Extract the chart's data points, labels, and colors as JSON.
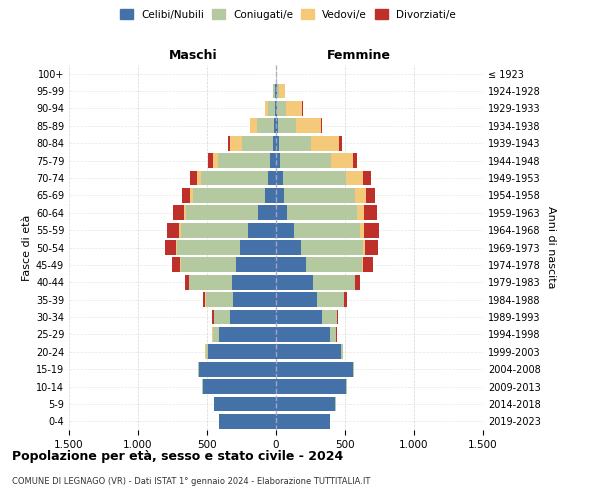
{
  "age_groups": [
    "0-4",
    "5-9",
    "10-14",
    "15-19",
    "20-24",
    "25-29",
    "30-34",
    "35-39",
    "40-44",
    "45-49",
    "50-54",
    "55-59",
    "60-64",
    "65-69",
    "70-74",
    "75-79",
    "80-84",
    "85-89",
    "90-94",
    "95-99",
    "100+"
  ],
  "birth_years": [
    "2019-2023",
    "2014-2018",
    "2009-2013",
    "2004-2008",
    "1999-2003",
    "1994-1998",
    "1989-1993",
    "1984-1988",
    "1979-1983",
    "1974-1978",
    "1969-1973",
    "1964-1968",
    "1959-1963",
    "1954-1958",
    "1949-1953",
    "1944-1948",
    "1939-1943",
    "1934-1938",
    "1929-1933",
    "1924-1928",
    "≤ 1923"
  ],
  "males": {
    "celibi": [
      410,
      450,
      530,
      560,
      490,
      410,
      330,
      310,
      320,
      290,
      260,
      200,
      130,
      80,
      60,
      40,
      20,
      15,
      10,
      5,
      0
    ],
    "coniugati": [
      2,
      2,
      5,
      5,
      20,
      50,
      120,
      200,
      310,
      400,
      460,
      490,
      520,
      520,
      480,
      380,
      230,
      120,
      50,
      15,
      2
    ],
    "vedovi": [
      0,
      0,
      0,
      0,
      1,
      1,
      1,
      2,
      2,
      5,
      5,
      10,
      15,
      20,
      30,
      40,
      80,
      50,
      20,
      5,
      0
    ],
    "divorziati": [
      0,
      0,
      0,
      1,
      2,
      5,
      10,
      20,
      30,
      60,
      80,
      90,
      80,
      60,
      50,
      30,
      15,
      5,
      2,
      0,
      0
    ]
  },
  "females": {
    "nubili": [
      390,
      430,
      510,
      560,
      470,
      390,
      330,
      300,
      270,
      220,
      180,
      130,
      80,
      60,
      50,
      30,
      20,
      15,
      10,
      5,
      0
    ],
    "coniugate": [
      2,
      2,
      3,
      5,
      15,
      45,
      110,
      190,
      300,
      400,
      450,
      480,
      510,
      510,
      460,
      370,
      230,
      130,
      60,
      20,
      2
    ],
    "vedove": [
      0,
      0,
      0,
      0,
      1,
      1,
      2,
      3,
      5,
      8,
      15,
      30,
      50,
      80,
      120,
      160,
      210,
      180,
      120,
      40,
      3
    ],
    "divorziate": [
      0,
      0,
      0,
      1,
      2,
      5,
      10,
      20,
      35,
      75,
      95,
      105,
      90,
      70,
      55,
      30,
      20,
      10,
      5,
      2,
      0
    ]
  },
  "colors": {
    "celibi": "#4472a8",
    "coniugati": "#b5c9a1",
    "vedovi": "#f5c97a",
    "divorziati": "#c0302a"
  },
  "xlim": 1500,
  "title": "Popolazione per età, sesso e stato civile - 2024",
  "subtitle": "COMUNE DI LEGNAGO (VR) - Dati ISTAT 1° gennaio 2024 - Elaborazione TUTTITALIA.IT",
  "ylabel_left": "Fasce di età",
  "ylabel_right": "Anni di nascita",
  "xlabel_left": "Maschi",
  "xlabel_right": "Femmine",
  "background_color": "#ffffff",
  "grid_color": "#cccccc"
}
